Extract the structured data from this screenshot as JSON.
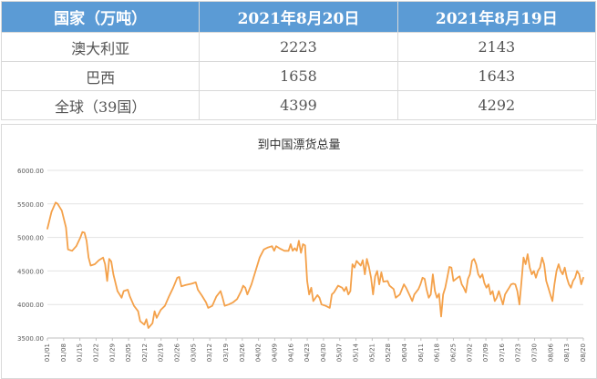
{
  "table": {
    "headers": [
      "国家（万吨）",
      "2021年8月20日",
      "2021年8月19日"
    ],
    "rows": [
      [
        "澳大利亚",
        "2223",
        "2143"
      ],
      [
        "巴西",
        "1658",
        "1643"
      ],
      [
        "全球（39国）",
        "4399",
        "4292"
      ]
    ]
  },
  "chart_data": {
    "type": "line",
    "title": "到中国漂货总量",
    "xlabel": "",
    "ylabel": "",
    "ylim": [
      3500,
      6000
    ],
    "yticks": [
      3500,
      4000,
      4500,
      5000,
      5500,
      6000
    ],
    "ytick_labels": [
      "3500.00",
      "4000.00",
      "4500.00",
      "5000.00",
      "5500.00",
      "6000.00"
    ],
    "line_color": "#f4a14a",
    "grid": "horizontal",
    "x_tick_labels": [
      "01/01",
      "01/08",
      "01/15",
      "01/22",
      "01/29",
      "02/05",
      "02/12",
      "02/19",
      "02/26",
      "03/05",
      "03/12",
      "03/19",
      "03/26",
      "04/02",
      "04/09",
      "04/16",
      "04/23",
      "04/30",
      "05/07",
      "05/14",
      "05/21",
      "05/28",
      "06/04",
      "06/11",
      "06/18",
      "06/25",
      "07/02",
      "07/09",
      "07/16",
      "07/23",
      "07/30",
      "08/06",
      "08/13",
      "08/20"
    ],
    "series": [
      {
        "name": "",
        "values": [
          [
            0,
            5130
          ],
          [
            2,
            5380
          ],
          [
            4,
            5520
          ],
          [
            5,
            5500
          ],
          [
            7,
            5400
          ],
          [
            9,
            5150
          ],
          [
            10,
            4820
          ],
          [
            12,
            4800
          ],
          [
            14,
            4870
          ],
          [
            16,
            5000
          ],
          [
            17,
            5080
          ],
          [
            18,
            5070
          ],
          [
            19,
            4950
          ],
          [
            20,
            4700
          ],
          [
            21,
            4580
          ],
          [
            23,
            4600
          ],
          [
            25,
            4660
          ],
          [
            27,
            4700
          ],
          [
            28,
            4600
          ],
          [
            29,
            4350
          ],
          [
            30,
            4680
          ],
          [
            31,
            4640
          ],
          [
            32,
            4450
          ],
          [
            34,
            4200
          ],
          [
            35,
            4150
          ],
          [
            36,
            4100
          ],
          [
            37,
            4200
          ],
          [
            39,
            4220
          ],
          [
            40,
            4120
          ],
          [
            42,
            3980
          ],
          [
            44,
            3900
          ],
          [
            45,
            3750
          ],
          [
            47,
            3700
          ],
          [
            48,
            3780
          ],
          [
            49,
            3650
          ],
          [
            51,
            3720
          ],
          [
            52,
            3900
          ],
          [
            53,
            3800
          ],
          [
            55,
            3920
          ],
          [
            57,
            3980
          ],
          [
            59,
            4120
          ],
          [
            61,
            4250
          ],
          [
            63,
            4400
          ],
          [
            64,
            4410
          ],
          [
            65,
            4270
          ],
          [
            67,
            4290
          ],
          [
            70,
            4310
          ],
          [
            72,
            4330
          ],
          [
            73,
            4220
          ],
          [
            75,
            4130
          ],
          [
            77,
            4030
          ],
          [
            78,
            3950
          ],
          [
            80,
            3980
          ],
          [
            82,
            4120
          ],
          [
            84,
            4200
          ],
          [
            85,
            4100
          ],
          [
            86,
            3980
          ],
          [
            88,
            4000
          ],
          [
            90,
            4030
          ],
          [
            92,
            4080
          ],
          [
            94,
            4200
          ],
          [
            95,
            4280
          ],
          [
            96,
            4250
          ],
          [
            97,
            4150
          ],
          [
            99,
            4300
          ],
          [
            101,
            4500
          ],
          [
            103,
            4700
          ],
          [
            105,
            4820
          ],
          [
            107,
            4850
          ],
          [
            109,
            4870
          ],
          [
            110,
            4800
          ],
          [
            111,
            4870
          ],
          [
            113,
            4830
          ],
          [
            115,
            4800
          ],
          [
            117,
            4800
          ],
          [
            118,
            4900
          ],
          [
            119,
            4800
          ],
          [
            120,
            4840
          ],
          [
            121,
            4800
          ],
          [
            122,
            4950
          ],
          [
            123,
            4770
          ],
          [
            124,
            4900
          ],
          [
            125,
            4880
          ],
          [
            126,
            4350
          ],
          [
            127,
            4150
          ],
          [
            128,
            4250
          ],
          [
            129,
            4050
          ],
          [
            131,
            4140
          ],
          [
            132,
            4100
          ],
          [
            133,
            4000
          ],
          [
            135,
            3980
          ],
          [
            137,
            3950
          ],
          [
            138,
            4150
          ],
          [
            139,
            4180
          ],
          [
            141,
            4280
          ],
          [
            143,
            4250
          ],
          [
            144,
            4200
          ],
          [
            145,
            4260
          ],
          [
            146,
            4150
          ],
          [
            147,
            4200
          ],
          [
            148,
            4600
          ],
          [
            149,
            4550
          ],
          [
            150,
            4650
          ],
          [
            152,
            4580
          ],
          [
            153,
            4660
          ],
          [
            154,
            4450
          ],
          [
            155,
            4680
          ],
          [
            156,
            4560
          ],
          [
            157,
            4400
          ],
          [
            158,
            4150
          ],
          [
            159,
            4420
          ],
          [
            160,
            4500
          ],
          [
            161,
            4300
          ],
          [
            162,
            4480
          ],
          [
            163,
            4340
          ],
          [
            165,
            4350
          ],
          [
            166,
            4280
          ],
          [
            168,
            4230
          ],
          [
            169,
            4100
          ],
          [
            171,
            4150
          ],
          [
            173,
            4300
          ],
          [
            174,
            4250
          ],
          [
            176,
            4120
          ],
          [
            177,
            4050
          ],
          [
            178,
            4150
          ],
          [
            180,
            4230
          ],
          [
            181,
            4300
          ],
          [
            182,
            4400
          ],
          [
            183,
            4380
          ],
          [
            184,
            4220
          ],
          [
            185,
            4100
          ],
          [
            186,
            4150
          ],
          [
            187,
            4450
          ],
          [
            188,
            4200
          ],
          [
            189,
            4100
          ],
          [
            190,
            4160
          ],
          [
            191,
            3820
          ],
          [
            192,
            4150
          ],
          [
            193,
            4250
          ],
          [
            194,
            4400
          ],
          [
            195,
            4560
          ],
          [
            196,
            4550
          ],
          [
            197,
            4350
          ],
          [
            199,
            4400
          ],
          [
            200,
            4420
          ],
          [
            201,
            4300
          ],
          [
            202,
            4250
          ],
          [
            203,
            4180
          ],
          [
            204,
            4380
          ],
          [
            205,
            4450
          ],
          [
            206,
            4650
          ],
          [
            207,
            4680
          ],
          [
            208,
            4600
          ],
          [
            209,
            4450
          ],
          [
            210,
            4400
          ],
          [
            211,
            4450
          ],
          [
            212,
            4320
          ],
          [
            213,
            4250
          ],
          [
            214,
            4300
          ],
          [
            215,
            4150
          ],
          [
            216,
            4200
          ],
          [
            217,
            4050
          ],
          [
            218,
            4100
          ],
          [
            219,
            4200
          ],
          [
            220,
            4100
          ],
          [
            221,
            4000
          ],
          [
            222,
            4150
          ],
          [
            223,
            4200
          ],
          [
            224,
            4250
          ],
          [
            225,
            4300
          ],
          [
            226,
            4310
          ],
          [
            227,
            4300
          ],
          [
            228,
            4200
          ],
          [
            229,
            4000
          ],
          [
            230,
            4350
          ],
          [
            231,
            4700
          ],
          [
            232,
            4600
          ],
          [
            233,
            4750
          ],
          [
            234,
            4550
          ],
          [
            235,
            4450
          ],
          [
            236,
            4500
          ],
          [
            237,
            4400
          ],
          [
            238,
            4500
          ],
          [
            239,
            4550
          ],
          [
            240,
            4700
          ],
          [
            241,
            4600
          ],
          [
            242,
            4350
          ],
          [
            243,
            4250
          ],
          [
            244,
            4150
          ],
          [
            245,
            4050
          ],
          [
            246,
            4300
          ],
          [
            247,
            4500
          ],
          [
            248,
            4600
          ],
          [
            249,
            4500
          ],
          [
            250,
            4450
          ],
          [
            251,
            4550
          ],
          [
            252,
            4400
          ],
          [
            253,
            4300
          ],
          [
            254,
            4250
          ],
          [
            255,
            4350
          ],
          [
            256,
            4400
          ],
          [
            257,
            4500
          ],
          [
            258,
            4450
          ],
          [
            259,
            4300
          ],
          [
            260,
            4400
          ]
        ]
      }
    ]
  }
}
